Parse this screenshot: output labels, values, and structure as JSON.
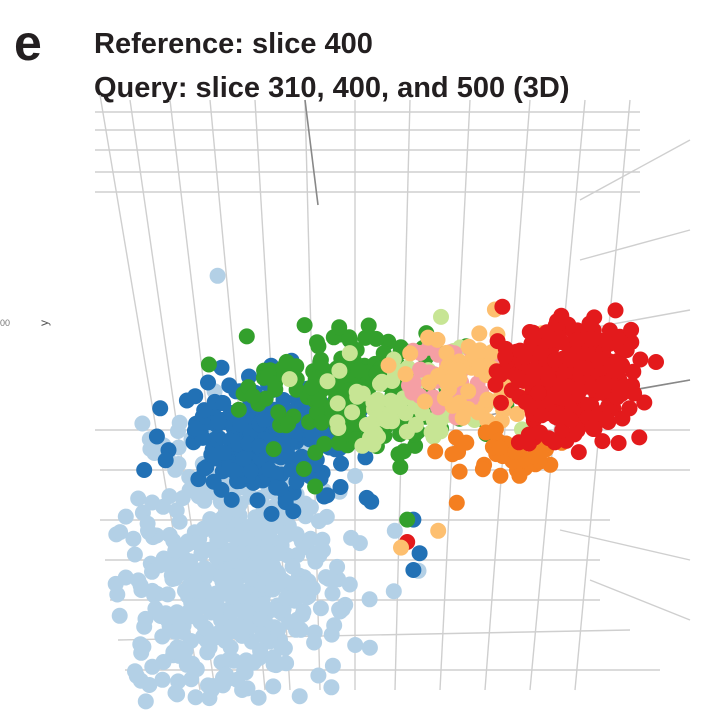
{
  "panel_label": "e",
  "chart_data": {
    "type": "scatter",
    "title_lines": [
      "Reference: slice 400",
      "Query: slice 310, 400, and 500 (3D)"
    ],
    "axis_tick_label": "00",
    "ylabel": "y",
    "grid": true,
    "legend": "none",
    "clusters": [
      {
        "color": "#b3d0e6",
        "center": [
          0.28,
          0.75
        ],
        "spread": [
          0.12,
          0.16
        ],
        "count": 520
      },
      {
        "color": "#2271b5",
        "center": [
          0.33,
          0.52
        ],
        "spread": [
          0.09,
          0.07
        ],
        "count": 230
      },
      {
        "color": "#33a02c",
        "center": [
          0.49,
          0.43
        ],
        "spread": [
          0.11,
          0.07
        ],
        "count": 230
      },
      {
        "color": "#c7e594",
        "center": [
          0.56,
          0.45
        ],
        "spread": [
          0.08,
          0.06
        ],
        "count": 70
      },
      {
        "color": "#f59fa4",
        "center": [
          0.63,
          0.41
        ],
        "spread": [
          0.05,
          0.04
        ],
        "count": 40
      },
      {
        "color": "#fdbf6f",
        "center": [
          0.68,
          0.4
        ],
        "spread": [
          0.08,
          0.06
        ],
        "count": 80
      },
      {
        "color": "#f47f20",
        "center": [
          0.73,
          0.53
        ],
        "spread": [
          0.06,
          0.03
        ],
        "count": 40
      },
      {
        "color": "#e31a1c",
        "center": [
          0.82,
          0.41
        ],
        "spread": [
          0.07,
          0.07
        ],
        "count": 300
      }
    ],
    "stray_points": [
      {
        "color": "#2271b5",
        "x": 0.58,
        "y": 0.72
      },
      {
        "color": "#2271b5",
        "x": 0.57,
        "y": 0.66
      },
      {
        "color": "#33a02c",
        "x": 0.56,
        "y": 0.66
      },
      {
        "color": "#e31a1c",
        "x": 0.56,
        "y": 0.7
      },
      {
        "color": "#fdbf6f",
        "x": 0.61,
        "y": 0.68
      },
      {
        "color": "#f47f20",
        "x": 0.64,
        "y": 0.63
      },
      {
        "color": "#b3d0e6",
        "x": 0.54,
        "y": 0.68
      },
      {
        "color": "#fdbf6f",
        "x": 0.55,
        "y": 0.71
      },
      {
        "color": "#2271b5",
        "x": 0.57,
        "y": 0.75
      }
    ]
  }
}
